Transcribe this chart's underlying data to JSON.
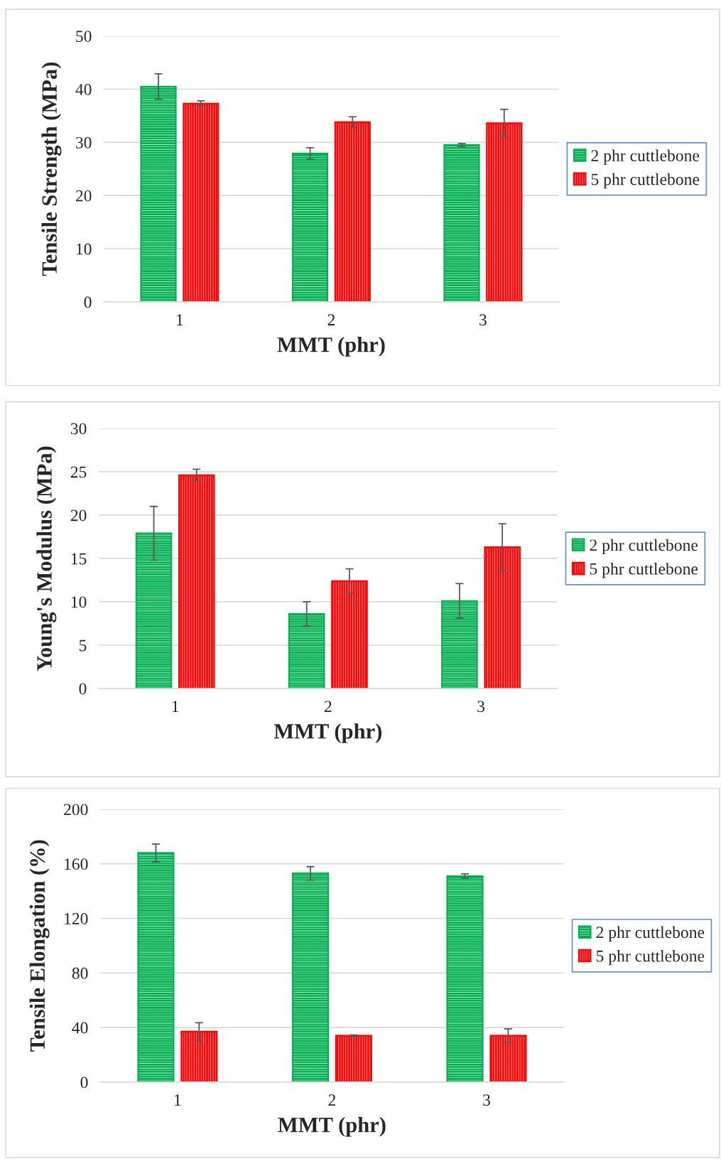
{
  "chart_data": [
    {
      "type": "bar",
      "categories": [
        "1",
        "2",
        "3"
      ],
      "xlabel": "MMT (phr)",
      "ylabel": "Tensile Strength (MPa)",
      "ylim": [
        0,
        50
      ],
      "yticks": [
        0,
        10,
        20,
        30,
        40,
        50
      ],
      "grid": "y",
      "legend": "right",
      "series": [
        {
          "name": "2 phr cuttlebone",
          "color": "#00b050",
          "values": [
            40.5,
            27.9,
            29.5
          ],
          "errors": [
            2.4,
            1.1,
            0.3
          ]
        },
        {
          "name": "5 phr cuttlebone",
          "color": "#ff0000",
          "values": [
            37.3,
            33.8,
            33.6
          ],
          "errors": [
            0.5,
            1.0,
            2.6
          ]
        }
      ]
    },
    {
      "type": "bar",
      "categories": [
        "1",
        "2",
        "3"
      ],
      "xlabel": "MMT (phr)",
      "ylabel": "Young's Modulus (MPa)",
      "ylim": [
        0,
        30
      ],
      "yticks": [
        0,
        5,
        10,
        15,
        20,
        25,
        30
      ],
      "grid": "y",
      "legend": "right",
      "series": [
        {
          "name": "2 phr cuttlebone",
          "color": "#00b050",
          "values": [
            17.9,
            8.6,
            10.1
          ],
          "errors": [
            3.1,
            1.4,
            2.0
          ]
        },
        {
          "name": "5 phr cuttlebone",
          "color": "#ff0000",
          "values": [
            24.6,
            12.4,
            16.3
          ],
          "errors": [
            0.7,
            1.4,
            2.7
          ]
        }
      ]
    },
    {
      "type": "bar",
      "categories": [
        "1",
        "2",
        "3"
      ],
      "xlabel": "MMT (phr)",
      "ylabel": "Tensile Elongation (%)",
      "ylim": [
        0,
        200
      ],
      "yticks": [
        0,
        40,
        80,
        120,
        160,
        200
      ],
      "grid": "y",
      "legend": "right",
      "series": [
        {
          "name": "2 phr cuttlebone",
          "color": "#00b050",
          "values": [
            168,
            153,
            151
          ],
          "errors": [
            6.5,
            4.9,
            1.6
          ]
        },
        {
          "name": "5 phr cuttlebone",
          "color": "#ff0000",
          "values": [
            37,
            34,
            34
          ],
          "errors": [
            6.5,
            0.5,
            5.0
          ]
        }
      ]
    }
  ]
}
